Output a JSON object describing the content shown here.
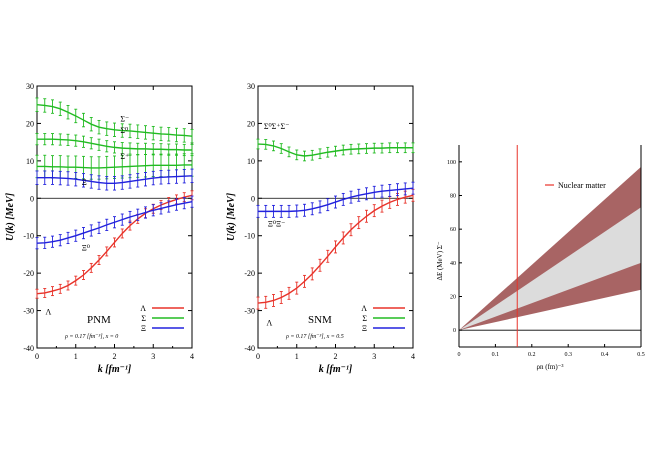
{
  "chart_data": [
    {
      "type": "line",
      "panel": "PNM",
      "ylabel": "U(k)  [MeV]",
      "xlabel": "k  [fm⁻¹]",
      "xlim": [
        0,
        4
      ],
      "ylim": [
        -40,
        30
      ],
      "xticks": [
        "0",
        "1",
        "2",
        "3",
        "4"
      ],
      "yticks": [
        "-40",
        "-30",
        "-20",
        "-10",
        "0",
        "10",
        "20",
        "30"
      ],
      "panel_label": "PNM",
      "condition_label": "ρ = 0.17 [fm⁻³], x = 0",
      "legend": [
        "Λ",
        "Σ",
        "Ξ"
      ],
      "legend_position": "bottom-right",
      "colors": {
        "Lambda": "#e8332a",
        "Sigma": "#22bb22",
        "Xi": "#2222dd"
      },
      "annotations": [
        {
          "text": "Σ⁻",
          "x": 2.15,
          "y": 20.5
        },
        {
          "text": "Σ⁰",
          "x": 2.15,
          "y": 17.5
        },
        {
          "text": "Σ⁺",
          "x": 2.15,
          "y": 10.5
        },
        {
          "text": "Ξ⁻",
          "x": 1.15,
          "y": 3.5
        },
        {
          "text": "Ξ⁰",
          "x": 1.15,
          "y": -14
        },
        {
          "text": "Λ",
          "x": 0.22,
          "y": -31
        }
      ],
      "series": [
        {
          "name": "Λ",
          "color": "Lambda",
          "x": [
            0,
            0.2,
            0.4,
            0.6,
            0.8,
            1.0,
            1.2,
            1.4,
            1.6,
            1.8,
            2.0,
            2.2,
            2.4,
            2.6,
            2.8,
            3.0,
            3.2,
            3.4,
            3.6,
            3.8,
            4.0
          ],
          "y": [
            -25.5,
            -25.3,
            -24.8,
            -24.2,
            -23.3,
            -22.0,
            -20.5,
            -18.6,
            -16.5,
            -14.2,
            -11.8,
            -9.4,
            -7.3,
            -5.5,
            -4.0,
            -2.8,
            -1.8,
            -1.0,
            -0.3,
            0.3,
            0.8
          ],
          "err": 1.2
        },
        {
          "name": "Σ⁻",
          "color": "Sigma",
          "x": [
            0,
            0.2,
            0.4,
            0.6,
            0.8,
            1.0,
            1.2,
            1.4,
            1.6,
            1.8,
            2.0,
            2.2,
            2.4,
            2.6,
            2.8,
            3.0,
            3.2,
            3.4,
            3.6,
            3.8,
            4.0
          ],
          "y": [
            25,
            24.8,
            24.5,
            23.9,
            23.0,
            22.0,
            20.9,
            19.8,
            19.0,
            18.6,
            18.3,
            18.1,
            18.0,
            17.8,
            17.6,
            17.4,
            17.2,
            17.1,
            16.9,
            16.8,
            16.6
          ],
          "err": 1.8
        },
        {
          "name": "Σ⁰",
          "color": "Sigma",
          "x": [
            0,
            0.2,
            0.4,
            0.6,
            0.8,
            1.0,
            1.2,
            1.4,
            1.6,
            1.8,
            2.0,
            2.2,
            2.4,
            2.6,
            2.8,
            3.0,
            3.2,
            3.4,
            3.6,
            3.8,
            4.0
          ],
          "y": [
            15.8,
            15.8,
            15.8,
            15.7,
            15.6,
            15.4,
            15.1,
            14.7,
            14.3,
            13.9,
            13.6,
            13.4,
            13.3,
            13.2,
            13.2,
            13.1,
            13.1,
            13.0,
            13.0,
            12.9,
            12.9
          ],
          "err": 1.5
        },
        {
          "name": "Σ⁺",
          "color": "Sigma",
          "x": [
            0,
            0.2,
            0.4,
            0.6,
            0.8,
            1.0,
            1.2,
            1.4,
            1.6,
            1.8,
            2.0,
            2.2,
            2.4,
            2.6,
            2.8,
            3.0,
            3.2,
            3.4,
            3.6,
            3.8,
            4.0
          ],
          "y": [
            8.5,
            8.5,
            8.4,
            8.4,
            8.3,
            8.3,
            8.2,
            8.1,
            8.1,
            8.2,
            8.3,
            8.4,
            8.5,
            8.6,
            8.7,
            8.8,
            8.8,
            8.8,
            8.8,
            8.9,
            8.9
          ],
          "err": 3.0
        },
        {
          "name": "Ξ⁻",
          "color": "Xi",
          "x": [
            0,
            0.2,
            0.4,
            0.6,
            0.8,
            1.0,
            1.2,
            1.4,
            1.6,
            1.8,
            2.0,
            2.2,
            2.4,
            2.6,
            2.8,
            3.0,
            3.2,
            3.4,
            3.6,
            3.8,
            4.0
          ],
          "y": [
            5.5,
            5.5,
            5.5,
            5.4,
            5.3,
            5.1,
            4.8,
            4.5,
            4.2,
            4.0,
            4.0,
            4.2,
            4.5,
            4.8,
            5.1,
            5.4,
            5.6,
            5.7,
            5.8,
            5.9,
            6.0
          ],
          "err": 1.8
        },
        {
          "name": "Ξ⁰",
          "color": "Xi",
          "x": [
            0,
            0.2,
            0.4,
            0.6,
            0.8,
            1.0,
            1.2,
            1.4,
            1.6,
            1.8,
            2.0,
            2.2,
            2.4,
            2.6,
            2.8,
            3.0,
            3.2,
            3.4,
            3.6,
            3.8,
            4.0
          ],
          "y": [
            -12.0,
            -11.9,
            -11.6,
            -11.2,
            -10.6,
            -10.0,
            -9.3,
            -8.6,
            -7.9,
            -7.1,
            -6.4,
            -5.7,
            -5.0,
            -4.4,
            -3.8,
            -3.2,
            -2.7,
            -2.2,
            -1.7,
            -1.3,
            -0.9
          ],
          "err": 1.5
        }
      ]
    },
    {
      "type": "line",
      "panel": "SNM",
      "ylabel": "U(k)  [MeV]",
      "xlabel": "k  [fm⁻¹]",
      "xlim": [
        0,
        4
      ],
      "ylim": [
        -40,
        30
      ],
      "xticks": [
        "0",
        "1",
        "2",
        "3",
        "4"
      ],
      "yticks": [
        "-40",
        "-30",
        "-20",
        "-10",
        "0",
        "10",
        "20",
        "30"
      ],
      "panel_label": "SNM",
      "condition_label": "ρ = 0.17 [fm⁻³], x = 0.5",
      "legend": [
        "Λ",
        "Σ",
        "Ξ"
      ],
      "legend_position": "bottom-right",
      "colors": {
        "Lambda": "#e8332a",
        "Sigma": "#22bb22",
        "Xi": "#2222dd"
      },
      "annotations": [
        {
          "text": "Σ⁰Σ⁺Σ⁻",
          "x": 0.15,
          "y": 18.5
        },
        {
          "text": "Ξ⁰Ξ⁻",
          "x": 0.25,
          "y": -7.5
        },
        {
          "text": "Λ",
          "x": 0.22,
          "y": -34
        }
      ],
      "series": [
        {
          "name": "Λ",
          "color": "Lambda",
          "x": [
            0,
            0.2,
            0.4,
            0.6,
            0.8,
            1.0,
            1.2,
            1.4,
            1.6,
            1.8,
            2.0,
            2.2,
            2.4,
            2.6,
            2.8,
            3.0,
            3.2,
            3.4,
            3.6,
            3.8,
            4.0
          ],
          "y": [
            -28,
            -27.8,
            -27.3,
            -26.5,
            -25.4,
            -24.0,
            -22.2,
            -20.2,
            -17.9,
            -15.5,
            -13.0,
            -10.6,
            -8.4,
            -6.5,
            -4.8,
            -3.3,
            -2.1,
            -1.1,
            -0.3,
            0.3,
            0.8
          ],
          "err": 1.6
        },
        {
          "name": "Σ",
          "color": "Sigma",
          "x": [
            0,
            0.2,
            0.4,
            0.6,
            0.8,
            1.0,
            1.2,
            1.4,
            1.6,
            1.8,
            2.0,
            2.2,
            2.4,
            2.6,
            2.8,
            3.0,
            3.2,
            3.4,
            3.6,
            3.8,
            4.0
          ],
          "y": [
            14.5,
            14.4,
            14.0,
            13.3,
            12.4,
            11.6,
            11.3,
            11.5,
            11.9,
            12.3,
            12.6,
            12.9,
            13.1,
            13.2,
            13.3,
            13.4,
            13.4,
            13.5,
            13.5,
            13.5,
            13.5
          ],
          "err": 1.3
        },
        {
          "name": "Ξ",
          "color": "Xi",
          "x": [
            0,
            0.2,
            0.4,
            0.6,
            0.8,
            1.0,
            1.2,
            1.4,
            1.6,
            1.8,
            2.0,
            2.2,
            2.4,
            2.6,
            2.8,
            3.0,
            3.2,
            3.4,
            3.6,
            3.8,
            4.0
          ],
          "y": [
            -3.5,
            -3.5,
            -3.5,
            -3.5,
            -3.5,
            -3.4,
            -3.2,
            -2.8,
            -2.3,
            -1.7,
            -1.0,
            -0.3,
            0.3,
            0.8,
            1.2,
            1.6,
            1.9,
            2.1,
            2.3,
            2.5,
            2.7
          ],
          "err": 1.6
        }
      ]
    },
    {
      "type": "area",
      "panel": "dE",
      "ylabel": "ΔE (MeV) Σ⁻",
      "xlabel": "ρn (fm)⁻³",
      "xlim": [
        0,
        0.5
      ],
      "ylim": [
        -10,
        110
      ],
      "xticks": [
        "0",
        "0.1",
        "0.2",
        "0.3",
        "0.4",
        "0.5"
      ],
      "yticks": [
        "0",
        "20",
        "40",
        "60",
        "80",
        "100"
      ],
      "legend": [
        "Nuclear matter"
      ],
      "legend_position": "top-right",
      "nuclear_matter_density": 0.16,
      "colors": {
        "outer_band": "#a86464",
        "inner_band": "#dcdcdc",
        "marker": "#e8332a"
      },
      "bands": {
        "x": [
          0,
          0.5
        ],
        "outer_upper": [
          0,
          97
        ],
        "inner_upper": [
          0,
          73
        ],
        "inner_lower": [
          0,
          40
        ],
        "outer_lower": [
          0,
          24
        ]
      }
    }
  ]
}
